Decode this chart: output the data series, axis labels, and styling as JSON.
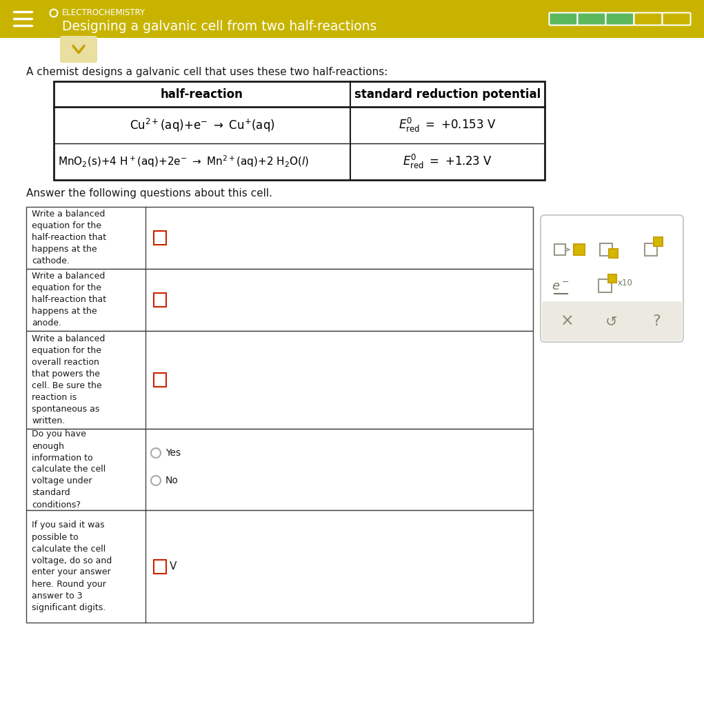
{
  "title_subject": "ELECTROCHEMISTRY",
  "title_main": "Designing a galvanic cell from two half-reactions",
  "header_bg": "#c8b400",
  "header_fg": "#ffffff",
  "body_bg": "#ffffff",
  "intro_text": "A chemist designs a galvanic cell that uses these two half-reactions:",
  "table_header1": "half-reaction",
  "table_header2": "standard reduction potential",
  "answer_intro": "Answer the following questions about this cell.",
  "q1_label": "Write a balanced\nequation for the\nhalf-reaction that\nhappens at the\ncathode.",
  "q2_label": "Write a balanced\nequation for the\nhalf-reaction that\nhappens at the\nanode.",
  "q3_label": "Write a balanced\nequation for the\noverall reaction\nthat powers the\ncell. Be sure the\nreaction is\nspontaneous as\nwritten.",
  "q4_label": "Do you have\nenough\ninformation to\ncalculate the cell\nvoltage under\nstandard\nconditions?",
  "q4_yes": "Yes",
  "q4_no": "No",
  "q5_label": "If you said it was\npossible to\ncalculate the cell\nvoltage, do so and\nenter your answer\nhere. Round your\nanswer to 3\nsignificant digits.",
  "q5_unit": "V",
  "progress_filled": 3,
  "progress_total": 5,
  "progress_color_filled": "#5cb85c",
  "progress_color_empty_fill": "#c8b400",
  "chevron_bg": "#e8dfa0",
  "chevron_color": "#c8a000",
  "panel_bg": "#ffffff",
  "panel_border": "#cccccc",
  "panel_bottom_bg": "#ece9e0",
  "tool_gray": "#999988",
  "tool_gold_border": "#c8a000",
  "tool_gold_fill": "#d4b800",
  "btn_color": "#888877"
}
